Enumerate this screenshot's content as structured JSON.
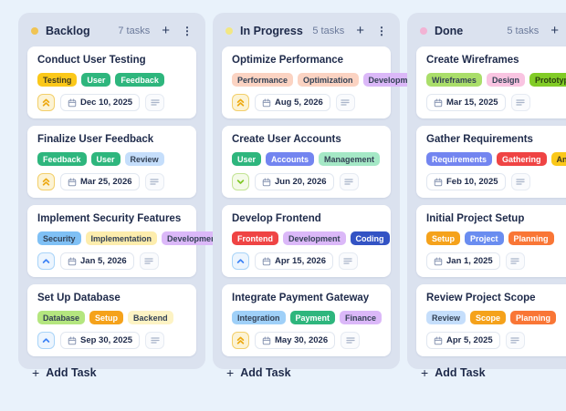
{
  "colors": {
    "page_background": "#e9f2fb",
    "column_background": "#dbe2ef",
    "card_background": "#ffffff",
    "heading_text": "#1e2a4a",
    "muted_text": "#6b7a9b",
    "priority_high": "#eda912",
    "priority_medium": "#3c82f6",
    "priority_low": "#7fc625"
  },
  "icons": {
    "add": "+",
    "column_menu": "⋮",
    "calendar": "calendar-icon",
    "description": "description-lines-icon",
    "priority_high": "double-chevron-up-icon",
    "priority_medium": "chevron-up-icon",
    "priority_low": "chevron-down-icon"
  },
  "board": {
    "columns": [
      {
        "title": "Backlog",
        "dot_color": "#f0c454",
        "task_count": "7 tasks",
        "add_task_label": "Add Task",
        "cards": [
          {
            "title": "Conduct User Testing",
            "tags": [
              {
                "label": "Testing",
                "bg": "#fbc819",
                "fg": "#3f3a20"
              },
              {
                "label": "User",
                "bg": "#2eb67d",
                "fg": "#ffffff"
              },
              {
                "label": "Feedback",
                "bg": "#2eb67d",
                "fg": "#ffffff"
              }
            ],
            "priority": "high",
            "due_date": "Dec 10, 2025"
          },
          {
            "title": "Finalize User Feedback",
            "tags": [
              {
                "label": "Feedback",
                "bg": "#2eb67d",
                "fg": "#ffffff"
              },
              {
                "label": "User",
                "bg": "#2eb67d",
                "fg": "#ffffff"
              },
              {
                "label": "Review",
                "bg": "#c5defb",
                "fg": "#334155"
              }
            ],
            "priority": "high",
            "due_date": "Mar 25, 2026"
          },
          {
            "title": "Implement Security Features",
            "tags": [
              {
                "label": "Security",
                "bg": "#7fc0f5",
                "fg": "#334155"
              },
              {
                "label": "Implementation",
                "bg": "#fdedad",
                "fg": "#334155"
              },
              {
                "label": "Development",
                "bg": "#dbb8f8",
                "fg": "#334155"
              }
            ],
            "priority": "medium",
            "due_date": "Jan 5, 2026"
          },
          {
            "title": "Set Up Database",
            "tags": [
              {
                "label": "Database",
                "bg": "#b4e67f",
                "fg": "#334155"
              },
              {
                "label": "Setup",
                "bg": "#f5a21b",
                "fg": "#ffffff"
              },
              {
                "label": "Backend",
                "bg": "#fdf3c4",
                "fg": "#334155"
              }
            ],
            "priority": "medium",
            "due_date": "Sep 30, 2025"
          }
        ]
      },
      {
        "title": "In Progress",
        "dot_color": "#f2e784",
        "task_count": "5 tasks",
        "add_task_label": "Add Task",
        "cards": [
          {
            "title": "Optimize Performance",
            "tags": [
              {
                "label": "Performance",
                "bg": "#fbd3c2",
                "fg": "#334155"
              },
              {
                "label": "Optimization",
                "bg": "#fbd3c2",
                "fg": "#334155"
              },
              {
                "label": "Development",
                "bg": "#dbb8f8",
                "fg": "#334155"
              }
            ],
            "priority": "high",
            "due_date": "Aug 5, 2026"
          },
          {
            "title": "Create User Accounts",
            "tags": [
              {
                "label": "User",
                "bg": "#2eb67d",
                "fg": "#ffffff"
              },
              {
                "label": "Accounts",
                "bg": "#7385f0",
                "fg": "#ffffff"
              },
              {
                "label": "Management",
                "bg": "#a5e8c6",
                "fg": "#334155"
              }
            ],
            "priority": "low",
            "due_date": "Jun 20, 2026"
          },
          {
            "title": "Develop Frontend",
            "tags": [
              {
                "label": "Frontend",
                "bg": "#ef4444",
                "fg": "#ffffff"
              },
              {
                "label": "Development",
                "bg": "#dbb8f8",
                "fg": "#334155"
              },
              {
                "label": "Coding",
                "bg": "#3353c4",
                "fg": "#ffffff"
              }
            ],
            "priority": "medium",
            "due_date": "Apr 15, 2026"
          },
          {
            "title": "Integrate Payment Gateway",
            "tags": [
              {
                "label": "Integration",
                "bg": "#9fd0f8",
                "fg": "#334155"
              },
              {
                "label": "Payment",
                "bg": "#2eb67d",
                "fg": "#ffffff"
              },
              {
                "label": "Finance",
                "bg": "#dbb8f8",
                "fg": "#334155"
              }
            ],
            "priority": "high",
            "due_date": "May 30, 2026"
          }
        ]
      },
      {
        "title": "Done",
        "dot_color": "#f2b3d4",
        "task_count": "5 tasks",
        "add_task_label": "Add Task",
        "cards": [
          {
            "title": "Create Wireframes",
            "tags": [
              {
                "label": "Wireframes",
                "bg": "#aade6a",
                "fg": "#334155"
              },
              {
                "label": "Design",
                "bg": "#f9c4e1",
                "fg": "#334155"
              },
              {
                "label": "Prototyping",
                "bg": "#82cc27",
                "fg": "#29400f"
              }
            ],
            "priority": null,
            "due_date": "Mar 15, 2025"
          },
          {
            "title": "Gather Requirements",
            "tags": [
              {
                "label": "Requirements",
                "bg": "#7385f0",
                "fg": "#ffffff"
              },
              {
                "label": "Gathering",
                "bg": "#ef4444",
                "fg": "#ffffff"
              },
              {
                "label": "Analysis",
                "bg": "#fbc819",
                "fg": "#3f3a20"
              }
            ],
            "priority": null,
            "due_date": "Feb 10, 2025"
          },
          {
            "title": "Initial Project Setup",
            "tags": [
              {
                "label": "Setup",
                "bg": "#f5a21b",
                "fg": "#ffffff"
              },
              {
                "label": "Project",
                "bg": "#6a8df0",
                "fg": "#ffffff"
              },
              {
                "label": "Planning",
                "bg": "#f97636",
                "fg": "#ffffff"
              }
            ],
            "priority": null,
            "due_date": "Jan 1, 2025"
          },
          {
            "title": "Review Project Scope",
            "tags": [
              {
                "label": "Review",
                "bg": "#c5defb",
                "fg": "#334155"
              },
              {
                "label": "Scope",
                "bg": "#f5a21b",
                "fg": "#ffffff"
              },
              {
                "label": "Planning",
                "bg": "#f97636",
                "fg": "#ffffff"
              }
            ],
            "priority": null,
            "due_date": "Apr 5, 2025"
          }
        ]
      }
    ]
  }
}
